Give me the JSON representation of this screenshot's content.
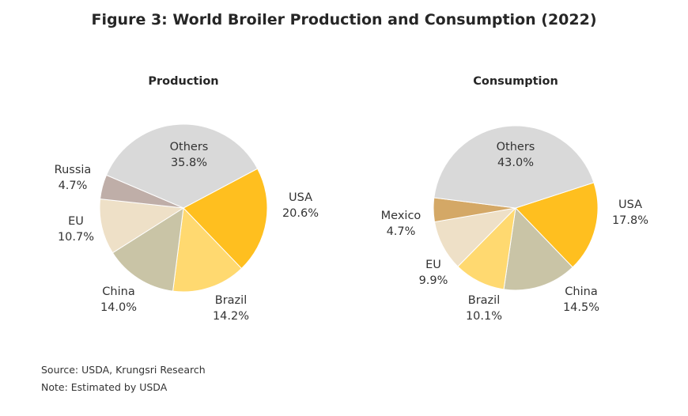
{
  "title": "Figure 3: World Broiler Production and Consumption (2022)",
  "chart_data": [
    {
      "type": "pie",
      "title": "Production",
      "unit": "%",
      "slices": [
        {
          "label": "USA",
          "value": 20.6,
          "display": "20.6%",
          "color": "#FFBF1F"
        },
        {
          "label": "Brazil",
          "value": 14.2,
          "display": "14.2%",
          "color": "#FFD970"
        },
        {
          "label": "China",
          "value": 14.0,
          "display": "14.0%",
          "color": "#C9C4A6"
        },
        {
          "label": "EU",
          "value": 10.7,
          "display": "10.7%",
          "color": "#EEE0C7"
        },
        {
          "label": "Russia",
          "value": 4.7,
          "display": "4.7%",
          "color": "#BFAEA8"
        },
        {
          "label": "Others",
          "value": 35.8,
          "display": "35.8%",
          "color": "#D9D9D9"
        }
      ]
    },
    {
      "type": "pie",
      "title": "Consumption",
      "unit": "%",
      "slices": [
        {
          "label": "USA",
          "value": 17.8,
          "display": "17.8%",
          "color": "#FFBF1F"
        },
        {
          "label": "China",
          "value": 14.5,
          "display": "14.5%",
          "color": "#C9C4A6"
        },
        {
          "label": "Brazil",
          "value": 10.1,
          "display": "10.1%",
          "color": "#FFD970"
        },
        {
          "label": "EU",
          "value": 9.9,
          "display": "9.9%",
          "color": "#EEE0C7"
        },
        {
          "label": "Mexico",
          "value": 4.7,
          "display": "4.7%",
          "color": "#D4A866"
        },
        {
          "label": "Others",
          "value": 43.0,
          "display": "43.0%",
          "color": "#D9D9D9"
        }
      ]
    }
  ],
  "footer": {
    "source": "Source: USDA, Krungsri Research",
    "note": "Note: Estimated by USDA"
  }
}
